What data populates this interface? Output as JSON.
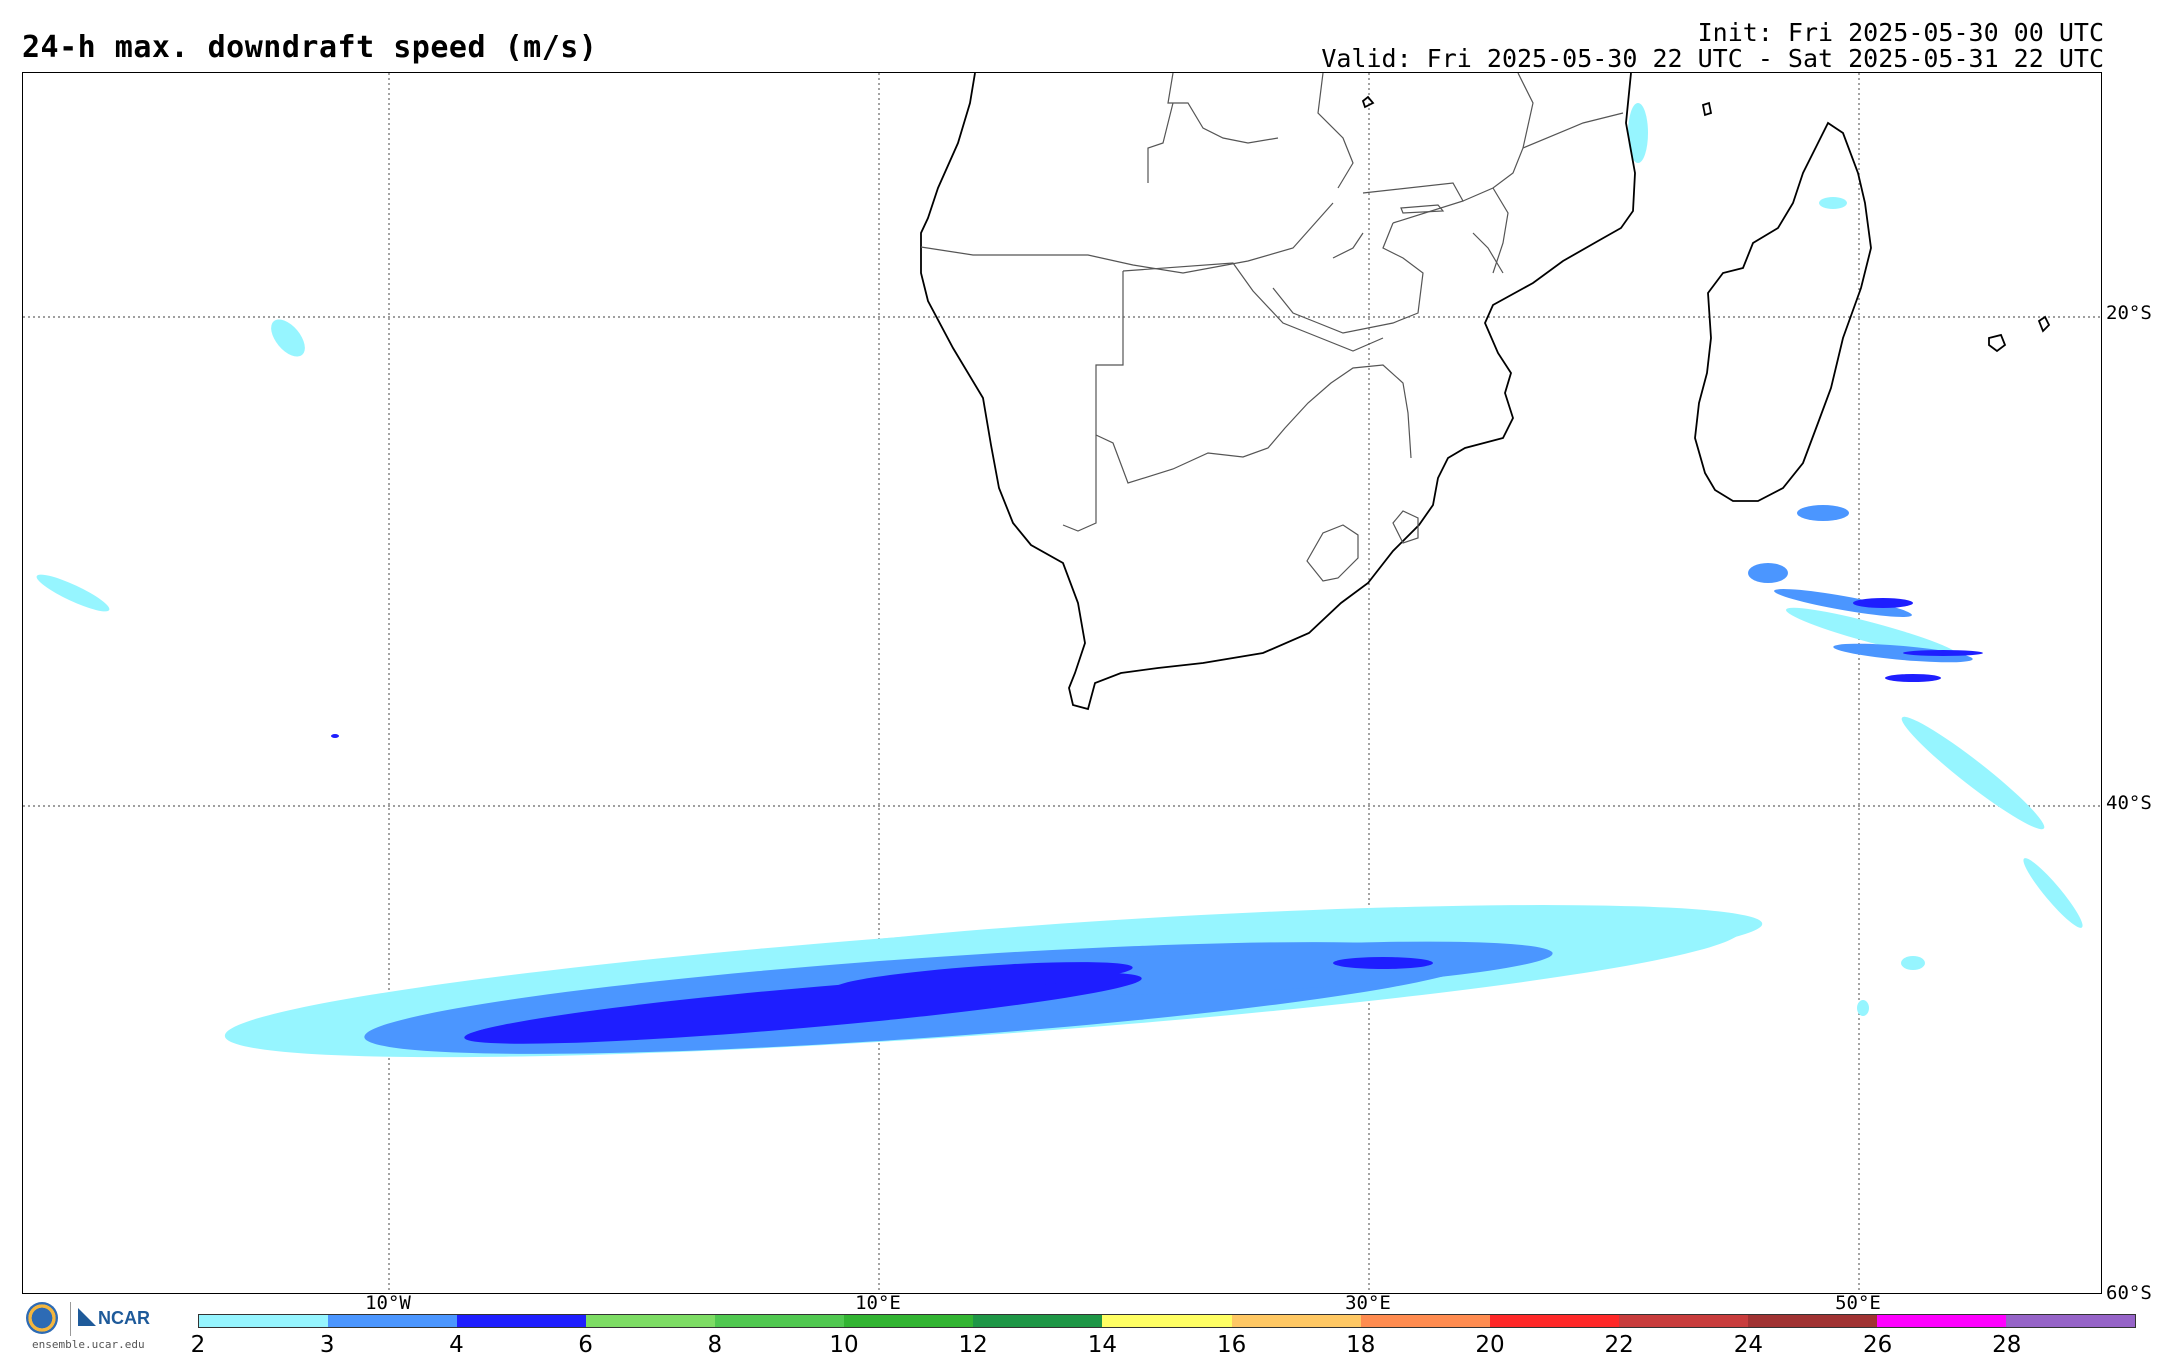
{
  "header": {
    "title": "24-h max. downdraft speed (m/s)",
    "init": "Init: Fri 2025-05-30 00 UTC",
    "valid": "Valid: Fri 2025-05-30 22 UTC - Sat 2025-05-31 22 UTC"
  },
  "map": {
    "lat_labels": [
      "20°S",
      "40°S",
      "60°S"
    ],
    "lon_labels": [
      "10°W",
      "10°E",
      "30°E",
      "50°E"
    ]
  },
  "logo": {
    "ncar": "NCAR",
    "url": "ensemble.ucar.edu"
  },
  "colorbar": {
    "labels": [
      "2",
      "4",
      "6",
      "8",
      "10",
      "12",
      "14",
      "16",
      "18",
      "20",
      "22",
      "24",
      "26",
      "28"
    ],
    "colors": [
      "#96f5ff",
      "#4b96ff",
      "#1e1eff",
      "#7ddc64",
      "#50c850",
      "#32b432",
      "#1e9646",
      "#ffff64",
      "#ffc864",
      "#ff8c50",
      "#ff2828",
      "#c83c3c",
      "#a03232",
      "#ff00ff",
      "#9664c8"
    ],
    "label_3": "3"
  }
}
